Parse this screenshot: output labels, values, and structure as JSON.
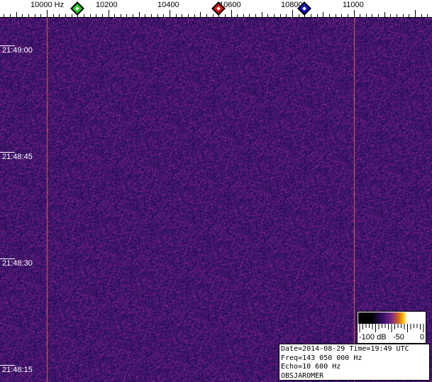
{
  "chart_data": {
    "type": "heatmap",
    "xunit": "Hz",
    "x_ticks": [
      "10000 Hz",
      "10200",
      "10400",
      "10600",
      "10800",
      "11000"
    ],
    "x_tick_values": [
      10000,
      10200,
      10400,
      10600,
      10800,
      11000
    ],
    "y_ticks": [
      "21:49:00",
      "21:48:45",
      "21:48:30",
      "21:48:15"
    ],
    "colorbar": {
      "labels": [
        "-100 dB",
        "-50",
        "0"
      ],
      "range_db": [
        -100,
        0
      ]
    },
    "vertical_lines_hz": [
      10000,
      11000
    ],
    "markers": [
      {
        "color": "#22cc22",
        "freq_hz": 10100
      },
      {
        "color": "#dd1111",
        "freq_hz": 10560
      },
      {
        "color": "#1111cc",
        "freq_hz": 10840
      }
    ],
    "background_color": "#2a1a7a"
  },
  "info": {
    "line1": "Date=2014-08-29 Time=19:49 UTC",
    "line2": "Freq=143 050 000 Hz",
    "line3": "Echo=10 600 Hz",
    "line4": "OBSJAROMER"
  }
}
